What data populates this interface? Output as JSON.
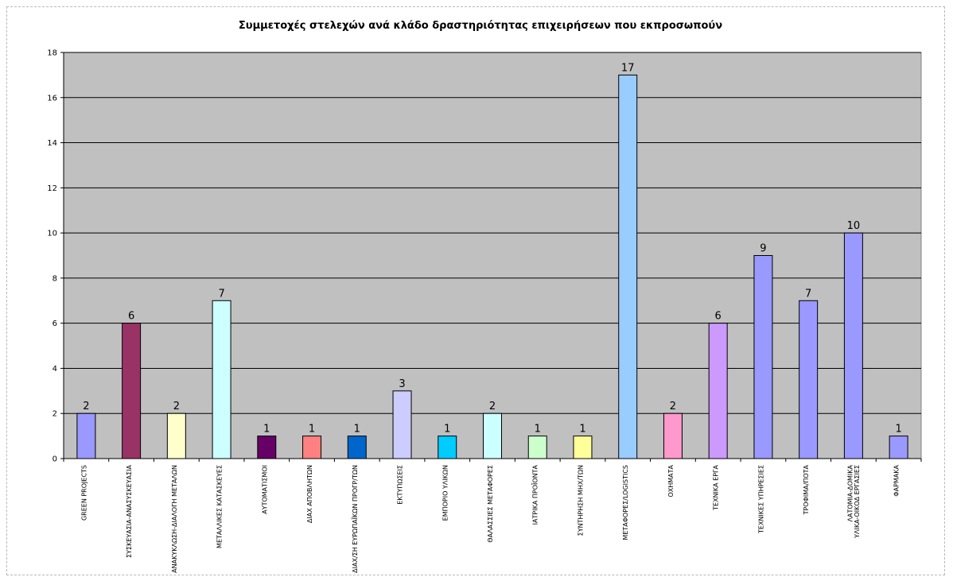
{
  "chart_data": {
    "type": "bar",
    "title": "Συμμετοχές στελεχών ανά κλάδο δραστηριότητας επιχειρήσεων που εκπροσωπούν",
    "xlabel": "",
    "ylabel": "",
    "ylim": [
      0,
      18
    ],
    "ytick_step": 2,
    "grid": "horizontal",
    "plot_background": "#c0c0c0",
    "categories": [
      "GREEN PROJECTS",
      "ΣΥΣΚΕΥΑΣΙΑ-ΑΝΑΣΥΣΚΕΥΑΣΙΑ",
      "ΑΝΑΚΥΚΛΩΣΗ-ΔΙΑΛΟΓΗ ΜΕΤΑΛΩΝ",
      "ΜΕΤΑΛΛΙΚΕΣ ΚΑΤΑΣΚΕΥΕΣ",
      "ΑΥΤΟΜΑΤΙΣΜΟΙ",
      "ΔΙΑΧ ΑΠΟΒΛΗΤΩΝ",
      "ΔΙΑΧ/ΣΗ ΕΥΡΩΠΑΪΚΩΝ ΠΡΟΓΡ/ΤΩΝ",
      "ΕΚΤΥΠΩΣΕΙΣ",
      "ΕΜΠΟΡΙΟ ΥΛΙΚΩΝ",
      "ΘΑΛΑΣΣΙΕΣ ΜΕΤΑΦΟΡΕΣ",
      "ΙΑΤΡΙΚΑ ΠΡΟΪΟΝΤΑ",
      "ΣΥΝΤΗΡΗΣΗ ΜΗΧ/ΤΩΝ",
      "ΜΕΤΑΦΟΡΕΣ/LOGISTICS",
      "ΟΧΗΜΑΤΑ",
      "ΤΕΧΝΙΚΑ ΕΡΓΑ",
      "ΤΕΧΝΙΚΕΣ ΥΠΗΡΕΣΙΕΣ",
      "ΤΡΟΦΙΜΑ/ΠΟΤΑ",
      "ΛΑΤΟΜΙΑ-ΔΟΜΙΚΑ ΥΛΙΚΑ-ΟΙΚΟΔ ΕΡΓΑΣΙΕΣ",
      "ΦΑΡΜΑΚΑ"
    ],
    "values": [
      2,
      6,
      2,
      7,
      1,
      1,
      1,
      3,
      1,
      2,
      1,
      1,
      17,
      2,
      6,
      9,
      7,
      10,
      1
    ],
    "colors": [
      "#9999ff",
      "#993366",
      "#ffffcc",
      "#ccffff",
      "#660066",
      "#ff8080",
      "#0066cc",
      "#ccccff",
      "#00ccff",
      "#ccffff",
      "#ccffcc",
      "#ffff99",
      "#99ccff",
      "#ff99cc",
      "#cc99ff",
      "#9999ff",
      "#9999ff",
      "#9999ff",
      "#9999ff"
    ]
  }
}
